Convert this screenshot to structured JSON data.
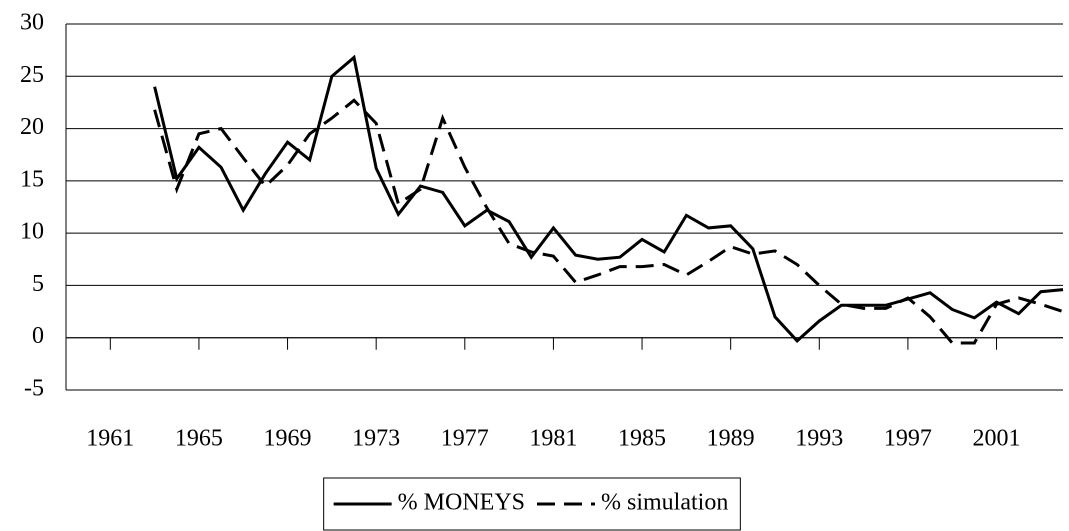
{
  "chart_data": {
    "type": "line",
    "x": [
      1963,
      1964,
      1965,
      1966,
      1967,
      1968,
      1969,
      1970,
      1971,
      1972,
      1973,
      1974,
      1975,
      1976,
      1977,
      1978,
      1979,
      1980,
      1981,
      1982,
      1983,
      1984,
      1985,
      1986,
      1987,
      1988,
      1989,
      1990,
      1991,
      1992,
      1993,
      1994,
      1995,
      1996,
      1997,
      1998,
      1999,
      2000,
      2001,
      2002,
      2003,
      2004
    ],
    "series": [
      {
        "name": "% MONEYS",
        "color": "#000000",
        "dash": "solid",
        "values": [
          24.0,
          15.2,
          18.2,
          16.3,
          12.2,
          15.7,
          18.7,
          17.0,
          25.0,
          26.8,
          16.2,
          11.8,
          14.5,
          13.9,
          10.7,
          12.2,
          11.1,
          7.7,
          10.5,
          7.9,
          7.5,
          7.7,
          9.4,
          8.2,
          11.7,
          10.5,
          10.7,
          8.5,
          2.0,
          -0.3,
          1.6,
          3.1,
          3.1,
          3.1,
          3.7,
          4.3,
          2.7,
          1.9,
          3.4,
          2.3,
          4.4,
          4.6
        ]
      },
      {
        "name": "% simulation",
        "color": "#000000",
        "dash": "dashed",
        "values": [
          21.8,
          14.2,
          19.5,
          20.0,
          17.2,
          14.5,
          16.5,
          19.5,
          21.0,
          22.7,
          20.5,
          12.8,
          14.2,
          21.0,
          16.3,
          12.4,
          9.0,
          8.2,
          7.8,
          5.3,
          6.0,
          6.8,
          6.8,
          7.0,
          6.0,
          7.3,
          8.7,
          8.0,
          8.3,
          7.0,
          5.0,
          3.2,
          2.8,
          2.8,
          3.8,
          2.0,
          -0.5,
          -0.5,
          3.2,
          3.8,
          3.2,
          2.5
        ]
      }
    ],
    "xlim": [
      1959,
      2004
    ],
    "xticks": [
      1961,
      1965,
      1969,
      1973,
      1977,
      1981,
      1985,
      1989,
      1993,
      1997,
      2001
    ],
    "ylim": [
      -5,
      30
    ],
    "yticks": [
      -5,
      0,
      5,
      10,
      15,
      20,
      25,
      30
    ],
    "grid": true,
    "legend": "bottom"
  }
}
